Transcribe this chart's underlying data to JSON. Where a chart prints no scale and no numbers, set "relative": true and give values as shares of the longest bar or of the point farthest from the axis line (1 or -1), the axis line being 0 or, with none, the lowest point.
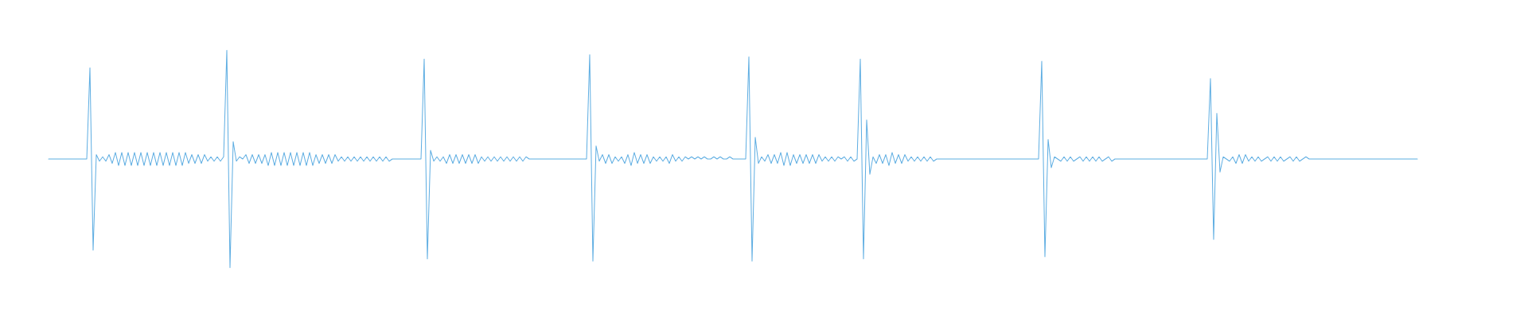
{
  "chart_data": {
    "type": "line",
    "relative": true,
    "color": "#5dade2",
    "categories": [
      null,
      null,
      null,
      null,
      null,
      null,
      null,
      null,
      null,
      null,
      null,
      null,
      null,
      null,
      null,
      null,
      null,
      null,
      null,
      null,
      null,
      null,
      null,
      null,
      null,
      null,
      null,
      null,
      null,
      null,
      null,
      null,
      null,
      null,
      null,
      null,
      null,
      null,
      null,
      null,
      null,
      null,
      null,
      null,
      null,
      null,
      null,
      null,
      null,
      null,
      null,
      null,
      null,
      null,
      null,
      null,
      null,
      null,
      null,
      null,
      null,
      null,
      null,
      null,
      null,
      null,
      null,
      null,
      null,
      null,
      null,
      null,
      null,
      null,
      null,
      null,
      null,
      null,
      null,
      null,
      null,
      null,
      null,
      null,
      null,
      null,
      null,
      null,
      null,
      null,
      null,
      null,
      null,
      null,
      null,
      null,
      null,
      null,
      null,
      null,
      null,
      null,
      null,
      null,
      null,
      null,
      null,
      null,
      null,
      null,
      null,
      null,
      null,
      null,
      null,
      null,
      null,
      null,
      null,
      null,
      null,
      null,
      null,
      null,
      null,
      null,
      null,
      null,
      null,
      null,
      null,
      null,
      null,
      null,
      null,
      null,
      null,
      null,
      null,
      null,
      null,
      null,
      null,
      null,
      null,
      null,
      null,
      null,
      null,
      null,
      null,
      null,
      null,
      null,
      null,
      null,
      null,
      null,
      null,
      null,
      null,
      null,
      null,
      null,
      null,
      null,
      null,
      null,
      null,
      null,
      null,
      null,
      null,
      null,
      null,
      null,
      null,
      null,
      null,
      null,
      null,
      null,
      null,
      null,
      null,
      null,
      null,
      null,
      null,
      null,
      null,
      null,
      null,
      null,
      null,
      null,
      null,
      null,
      null,
      null,
      null,
      null,
      null,
      null,
      null,
      null,
      null,
      null,
      null,
      null,
      null,
      null,
      null,
      null,
      null,
      null,
      null,
      null,
      null,
      null,
      null,
      null,
      null,
      null,
      null,
      null,
      null,
      null,
      null,
      null,
      null,
      null,
      null,
      null,
      null,
      null,
      null,
      null,
      null,
      null,
      null,
      null,
      null,
      null,
      null,
      null,
      null,
      null,
      null,
      null,
      null,
      null,
      null,
      null,
      null,
      null,
      null,
      null,
      null,
      null,
      null,
      null,
      null,
      null,
      null,
      null,
      null,
      null,
      null,
      null,
      null,
      null,
      null,
      null,
      null,
      null,
      null,
      null,
      null,
      null,
      null,
      null,
      null,
      null,
      null,
      null,
      null,
      null,
      null,
      null,
      null,
      null,
      null,
      null,
      null,
      null,
      null,
      null,
      null,
      null,
      null,
      null,
      null,
      null,
      null,
      null,
      null,
      null,
      null,
      null,
      null,
      null,
      null,
      null,
      null,
      null,
      null,
      null,
      null,
      null,
      null,
      null,
      null,
      null,
      null,
      null,
      null,
      null,
      null,
      null,
      null,
      null,
      null,
      null,
      null,
      null,
      null,
      null,
      null,
      null,
      null,
      null,
      null,
      null,
      null,
      null,
      null,
      null,
      null,
      null,
      null,
      null,
      null,
      null,
      null,
      null,
      null,
      null,
      null,
      null,
      null,
      null,
      null,
      null,
      null,
      null,
      null,
      null,
      null,
      null,
      null,
      null,
      null,
      null,
      null,
      null,
      null,
      null,
      null,
      null,
      null,
      null,
      null,
      null,
      null,
      null,
      null,
      null,
      null,
      null,
      null,
      null,
      null,
      null,
      null,
      null,
      null,
      null,
      null,
      null,
      null,
      null,
      null,
      null,
      null,
      null,
      null,
      null,
      null,
      null,
      null,
      null,
      null,
      null,
      null,
      null,
      null,
      null,
      null,
      null,
      null,
      null,
      null,
      null,
      null,
      null,
      null,
      null,
      null,
      null,
      null
    ],
    "values": [
      0.5,
      0.5,
      0.5,
      0.5,
      0.5,
      0.5,
      0.5,
      0.5,
      0.5,
      0.5,
      0.5,
      0.5,
      0.5,
      0.92,
      0.08,
      0.52,
      0.49,
      0.51,
      0.49,
      0.52,
      0.48,
      0.53,
      0.47,
      0.53,
      0.47,
      0.53,
      0.47,
      0.53,
      0.47,
      0.53,
      0.47,
      0.53,
      0.47,
      0.53,
      0.47,
      0.53,
      0.47,
      0.53,
      0.47,
      0.53,
      0.47,
      0.53,
      0.47,
      0.53,
      0.48,
      0.52,
      0.48,
      0.52,
      0.48,
      0.52,
      0.49,
      0.51,
      0.49,
      0.51,
      0.49,
      0.51,
      1,
      0,
      0.58,
      0.49,
      0.51,
      0.5,
      0.52,
      0.48,
      0.52,
      0.48,
      0.52,
      0.48,
      0.52,
      0.47,
      0.53,
      0.47,
      0.53,
      0.47,
      0.53,
      0.47,
      0.53,
      0.47,
      0.53,
      0.47,
      0.53,
      0.47,
      0.53,
      0.47,
      0.52,
      0.48,
      0.52,
      0.48,
      0.52,
      0.48,
      0.52,
      0.49,
      0.51,
      0.49,
      0.51,
      0.49,
      0.51,
      0.49,
      0.51,
      0.49,
      0.51,
      0.49,
      0.51,
      0.49,
      0.51,
      0.49,
      0.51,
      0.49,
      0.5,
      0.5,
      0.5,
      0.5,
      0.5,
      0.5,
      0.5,
      0.5,
      0.5,
      0.5,
      0.96,
      0.04,
      0.54,
      0.49,
      0.51,
      0.49,
      0.51,
      0.48,
      0.52,
      0.48,
      0.52,
      0.48,
      0.52,
      0.48,
      0.52,
      0.48,
      0.52,
      0.48,
      0.51,
      0.49,
      0.51,
      0.49,
      0.51,
      0.49,
      0.51,
      0.49,
      0.51,
      0.49,
      0.51,
      0.49,
      0.51,
      0.49,
      0.51,
      0.5,
      0.5,
      0.5,
      0.5,
      0.5,
      0.5,
      0.5,
      0.5,
      0.5,
      0.5,
      0.5,
      0.5,
      0.5,
      0.5,
      0.5,
      0.5,
      0.5,
      0.5,
      0.5,
      0.98,
      0.03,
      0.56,
      0.49,
      0.52,
      0.48,
      0.52,
      0.48,
      0.51,
      0.49,
      0.51,
      0.48,
      0.52,
      0.47,
      0.53,
      0.48,
      0.52,
      0.48,
      0.52,
      0.48,
      0.51,
      0.49,
      0.51,
      0.49,
      0.51,
      0.48,
      0.52,
      0.49,
      0.51,
      0.49,
      0.51,
      0.5,
      0.51,
      0.5,
      0.51,
      0.5,
      0.51,
      0.5,
      0.5,
      0.51,
      0.5,
      0.51,
      0.5,
      0.5,
      0.51,
      0.5,
      0.5,
      0.5,
      0.5,
      0.5,
      0.97,
      0.03,
      0.6,
      0.48,
      0.51,
      0.49,
      0.52,
      0.48,
      0.52,
      0.48,
      0.53,
      0.47,
      0.53,
      0.47,
      0.52,
      0.48,
      0.52,
      0.48,
      0.52,
      0.48,
      0.52,
      0.48,
      0.52,
      0.49,
      0.51,
      0.49,
      0.51,
      0.49,
      0.51,
      0.5,
      0.51,
      0.49,
      0.51,
      0.49,
      0.5,
      0.96,
      0.04,
      0.68,
      0.43,
      0.51,
      0.48,
      0.52,
      0.48,
      0.52,
      0.47,
      0.53,
      0.48,
      0.52,
      0.48,
      0.52,
      0.49,
      0.51,
      0.49,
      0.51,
      0.49,
      0.51,
      0.49,
      0.51,
      0.49,
      0.5,
      0.5,
      0.5,
      0.5,
      0.5,
      0.5,
      0.5,
      0.5,
      0.5,
      0.5,
      0.5,
      0.5,
      0.5,
      0.5,
      0.5,
      0.5,
      0.5,
      0.5,
      0.5,
      0.5,
      0.5,
      0.5,
      0.5,
      0.5,
      0.5,
      0.5,
      0.5,
      0.5,
      0.5,
      0.5,
      0.5,
      0.5,
      0.5,
      0.95,
      0.05,
      0.59,
      0.46,
      0.51,
      0.5,
      0.49,
      0.51,
      0.49,
      0.51,
      0.49,
      0.5,
      0.51,
      0.49,
      0.51,
      0.49,
      0.51,
      0.49,
      0.51,
      0.49,
      0.5,
      0.51,
      0.49,
      0.5,
      0.5,
      0.5,
      0.5,
      0.5,
      0.5,
      0.5,
      0.5,
      0.5,
      0.5,
      0.5,
      0.5,
      0.5,
      0.5,
      0.5,
      0.5,
      0.5,
      0.5,
      0.5,
      0.5,
      0.5,
      0.5,
      0.5,
      0.5,
      0.5,
      0.5,
      0.5,
      0.5,
      0.5,
      0.5,
      0.87,
      0.13,
      0.71,
      0.44,
      0.51,
      0.5,
      0.49,
      0.51,
      0.48,
      0.52,
      0.48,
      0.52,
      0.49,
      0.51,
      0.49,
      0.51,
      0.49,
      0.5,
      0.51,
      0.49,
      0.51,
      0.49,
      0.51,
      0.49,
      0.5,
      0.51,
      0.49,
      0.51,
      0.49,
      0.5,
      0.51,
      0.5,
      0.5,
      0.5,
      0.5,
      0.5,
      0.5,
      0.5,
      0.5,
      0.5,
      0.5,
      0.5,
      0.5,
      0.5,
      0.5,
      0.5,
      0.5,
      0.5,
      0.5,
      0.5,
      0.5,
      0.5,
      0.5,
      0.5,
      0.5,
      0.5,
      0.5,
      0.5,
      0.5,
      0.5,
      0.5,
      0.5,
      0.5,
      0.5,
      0.5,
      0.5
    ]
  }
}
